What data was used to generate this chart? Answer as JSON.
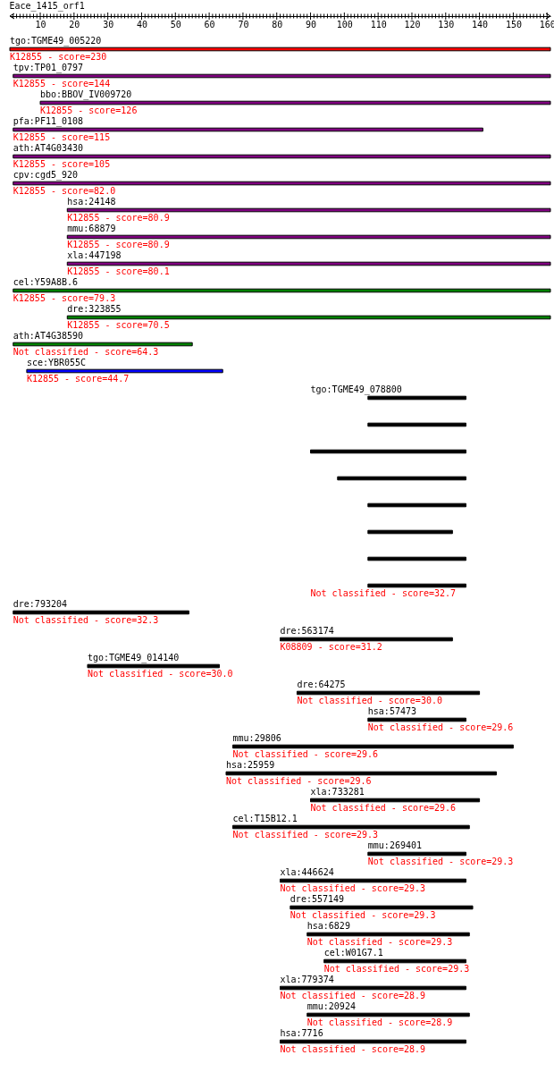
{
  "chart_data": {
    "type": "bar",
    "orientation": "horizontal",
    "title": "Eace_1415_orf1",
    "categories": [
      "tgo:TGME49_005220",
      "tpv:TP01_0797",
      "bbo:BBOV_IV009720",
      "pfa:PF11_0108",
      "ath:AT4G03430",
      "cpv:cgd5_920",
      "hsa:24148",
      "mmu:68879",
      "xla:447198",
      "cel:Y59A8B.6",
      "dre:323855",
      "ath:AT4G38590",
      "sce:YBR055C",
      "tgo:TGME49_078800",
      null,
      null,
      null,
      null,
      null,
      null,
      null,
      "dre:793204",
      "dre:563174",
      "tgo:TGME49_014140",
      "dre:64275",
      "hsa:57473",
      "mmu:29806",
      "hsa:25959",
      "xla:733281",
      "cel:T15B12.1",
      "mmu:269401",
      "xla:446624",
      "dre:557149",
      "hsa:6829",
      "cel:W01G7.1",
      "xla:779374",
      "mmu:20924",
      "hsa:7716"
    ],
    "base": [
      1,
      2,
      10,
      2,
      2,
      2,
      18,
      18,
      18,
      2,
      18,
      2,
      6,
      107,
      107,
      90,
      98,
      107,
      107,
      107,
      107,
      2,
      81,
      24,
      86,
      107,
      67,
      65,
      90,
      67,
      107,
      81,
      84,
      89,
      94,
      81,
      89,
      81
    ],
    "values": [
      160,
      159,
      151,
      139,
      159,
      159,
      143,
      143,
      143,
      159,
      143,
      53,
      58,
      29,
      29,
      46,
      38,
      29,
      25,
      29,
      29,
      52,
      51,
      39,
      54,
      29,
      83,
      80,
      50,
      70,
      29,
      55,
      54,
      48,
      42,
      55,
      48,
      55
    ],
    "colors": [
      "#ff0000",
      "#800080",
      "#800080",
      "#800080",
      "#800080",
      "#800080",
      "#800080",
      "#800080",
      "#800080",
      "#008000",
      "#008000",
      "#008000",
      "#0000ff",
      "#000000",
      "#000000",
      "#000000",
      "#000000",
      "#000000",
      "#000000",
      "#000000",
      "#000000",
      "#000000",
      "#000000",
      "#000000",
      "#000000",
      "#000000",
      "#000000",
      "#000000",
      "#000000",
      "#000000",
      "#000000",
      "#000000",
      "#000000",
      "#000000",
      "#000000",
      "#000000",
      "#000000",
      "#000000"
    ],
    "annotations": [
      "K12855 - score=230",
      "K12855 - score=144",
      "K12855 - score=126",
      "K12855 - score=115",
      "K12855 - score=105",
      "K12855 - score=82.0",
      "K12855 - score=80.9",
      "K12855 - score=80.9",
      "K12855 - score=80.1",
      "K12855 - score=79.3",
      "K12855 - score=70.5",
      "Not classified - score=64.3",
      "K12855 - score=44.7",
      "Not classified - score=32.7",
      "Not classified - score=32.3",
      "K08809 - score=31.2",
      "Not classified - score=30.0",
      "Not classified - score=30.0",
      "Not classified - score=29.6",
      "Not classified - score=29.6",
      "Not classified - score=29.6",
      "Not classified - score=29.6",
      "Not classified - score=29.3",
      "Not classified - score=29.3",
      "Not classified - score=29.3",
      "Not classified - score=29.3",
      "Not classified - score=29.3",
      "Not classified - score=29.3",
      "Not classified - score=28.9",
      "Not classified - score=28.9",
      "Not classified - score=28.9"
    ],
    "xlim": [
      1,
      161
    ],
    "xticks": [
      {
        "value": 2,
        "label": null
      },
      {
        "value": 3,
        "label": null
      },
      {
        "value": 4,
        "label": null
      },
      {
        "value": 5,
        "label": null
      },
      {
        "value": 6,
        "label": null
      },
      {
        "value": 7,
        "label": null
      },
      {
        "value": 8,
        "label": null
      },
      {
        "value": 9,
        "label": null
      },
      10,
      {
        "value": 11,
        "label": null
      },
      {
        "value": 12,
        "label": null
      },
      {
        "value": 13,
        "label": null
      },
      {
        "value": 14,
        "label": null
      },
      {
        "value": 15,
        "label": null
      },
      {
        "value": 16,
        "label": null
      },
      {
        "value": 17,
        "label": null
      },
      {
        "value": 18,
        "label": null
      },
      {
        "value": 19,
        "label": null
      },
      20,
      {
        "value": 21,
        "label": null
      },
      {
        "value": 22,
        "label": null
      },
      {
        "value": 23,
        "label": null
      },
      {
        "value": 24,
        "label": null
      },
      {
        "value": 25,
        "label": null
      },
      {
        "value": 26,
        "label": null
      },
      {
        "value": 27,
        "label": null
      },
      {
        "value": 28,
        "label": null
      },
      {
        "value": 29,
        "label": null
      },
      30,
      {
        "value": 31,
        "label": null
      },
      {
        "value": 32,
        "label": null
      },
      {
        "value": 33,
        "label": null
      },
      {
        "value": 34,
        "label": null
      },
      {
        "value": 35,
        "label": null
      },
      {
        "value": 36,
        "label": null
      },
      {
        "value": 37,
        "label": null
      },
      {
        "value": 38,
        "label": null
      },
      {
        "value": 39,
        "label": null
      },
      40,
      {
        "value": 41,
        "label": null
      },
      {
        "value": 42,
        "label": null
      },
      {
        "value": 43,
        "label": null
      },
      {
        "value": 44,
        "label": null
      },
      {
        "value": 45,
        "label": null
      },
      {
        "value": 46,
        "label": null
      },
      {
        "value": 47,
        "label": null
      },
      {
        "value": 48,
        "label": null
      },
      {
        "value": 49,
        "label": null
      },
      50,
      {
        "value": 51,
        "label": null
      },
      {
        "value": 52,
        "label": null
      },
      {
        "value": 53,
        "label": null
      },
      {
        "value": 54,
        "label": null
      },
      {
        "value": 55,
        "label": null
      },
      {
        "value": 56,
        "label": null
      },
      {
        "value": 57,
        "label": null
      },
      {
        "value": 58,
        "label": null
      },
      {
        "value": 59,
        "label": null
      },
      60,
      {
        "value": 61,
        "label": null
      },
      {
        "value": 62,
        "label": null
      },
      {
        "value": 63,
        "label": null
      },
      {
        "value": 64,
        "label": null
      },
      {
        "value": 65,
        "label": null
      },
      {
        "value": 66,
        "label": null
      },
      {
        "value": 67,
        "label": null
      },
      {
        "value": 68,
        "label": null
      },
      {
        "value": 69,
        "label": null
      },
      70,
      {
        "value": 71,
        "label": null
      },
      {
        "value": 72,
        "label": null
      },
      {
        "value": 73,
        "label": null
      },
      {
        "value": 74,
        "label": null
      },
      {
        "value": 75,
        "label": null
      },
      {
        "value": 76,
        "label": null
      },
      {
        "value": 77,
        "label": null
      },
      {
        "value": 78,
        "label": null
      },
      {
        "value": 79,
        "label": null
      },
      80,
      {
        "value": 81,
        "label": null
      },
      {
        "value": 82,
        "label": null
      },
      {
        "value": 83,
        "label": null
      },
      {
        "value": 84,
        "label": null
      },
      {
        "value": 85,
        "label": null
      },
      {
        "value": 86,
        "label": null
      },
      {
        "value": 87,
        "label": null
      },
      {
        "value": 88,
        "label": null
      },
      {
        "value": 89,
        "label": null
      },
      90,
      {
        "value": 91,
        "label": null
      },
      {
        "value": 92,
        "label": null
      },
      {
        "value": 93,
        "label": null
      },
      {
        "value": 94,
        "label": null
      },
      {
        "value": 95,
        "label": null
      },
      {
        "value": 96,
        "label": null
      },
      {
        "value": 97,
        "label": null
      },
      {
        "value": 98,
        "label": null
      },
      {
        "value": 99,
        "label": null
      },
      100,
      {
        "value": 101,
        "label": null
      },
      {
        "value": 102,
        "label": null
      },
      {
        "value": 103,
        "label": null
      },
      {
        "value": 104,
        "label": null
      },
      {
        "value": 105,
        "label": null
      },
      {
        "value": 106,
        "label": null
      },
      {
        "value": 107,
        "label": null
      },
      {
        "value": 108,
        "label": null
      },
      {
        "value": 109,
        "label": null
      },
      110,
      {
        "value": 111,
        "label": null
      },
      {
        "value": 112,
        "label": null
      },
      {
        "value": 113,
        "label": null
      },
      {
        "value": 114,
        "label": null
      },
      {
        "value": 115,
        "label": null
      },
      {
        "value": 116,
        "label": null
      },
      {
        "value": 117,
        "label": null
      },
      {
        "value": 118,
        "label": null
      },
      {
        "value": 119,
        "label": null
      },
      120,
      {
        "value": 121,
        "label": null
      },
      {
        "value": 122,
        "label": null
      },
      {
        "value": 123,
        "label": null
      },
      {
        "value": 124,
        "label": null
      },
      {
        "value": 125,
        "label": null
      },
      {
        "value": 126,
        "label": null
      },
      {
        "value": 127,
        "label": null
      },
      {
        "value": 128,
        "label": null
      },
      {
        "value": 129,
        "label": null
      },
      130,
      {
        "value": 131,
        "label": null
      },
      {
        "value": 132,
        "label": null
      },
      {
        "value": 133,
        "label": null
      },
      {
        "value": 134,
        "label": null
      },
      {
        "value": 135,
        "label": null
      },
      {
        "value": 136,
        "label": null
      },
      {
        "value": 137,
        "label": null
      },
      {
        "value": 138,
        "label": null
      },
      {
        "value": 139,
        "label": null
      },
      140,
      {
        "value": 141,
        "label": null
      },
      {
        "value": 142,
        "label": null
      },
      {
        "value": 143,
        "label": null
      },
      {
        "value": 144,
        "label": null
      },
      {
        "value": 145,
        "label": null
      },
      {
        "value": 146,
        "label": null
      },
      {
        "value": 147,
        "label": null
      },
      {
        "value": 148,
        "label": null
      },
      {
        "value": 149,
        "label": null
      },
      150,
      {
        "value": 151,
        "label": null
      },
      {
        "value": 152,
        "label": null
      },
      {
        "value": 153,
        "label": null
      },
      {
        "value": 154,
        "label": null
      },
      {
        "value": 155,
        "label": null
      },
      {
        "value": 156,
        "label": null
      },
      {
        "value": 157,
        "label": null
      },
      {
        "value": 158,
        "label": null
      },
      {
        "value": 159,
        "label": null
      },
      160
    ]
  }
}
